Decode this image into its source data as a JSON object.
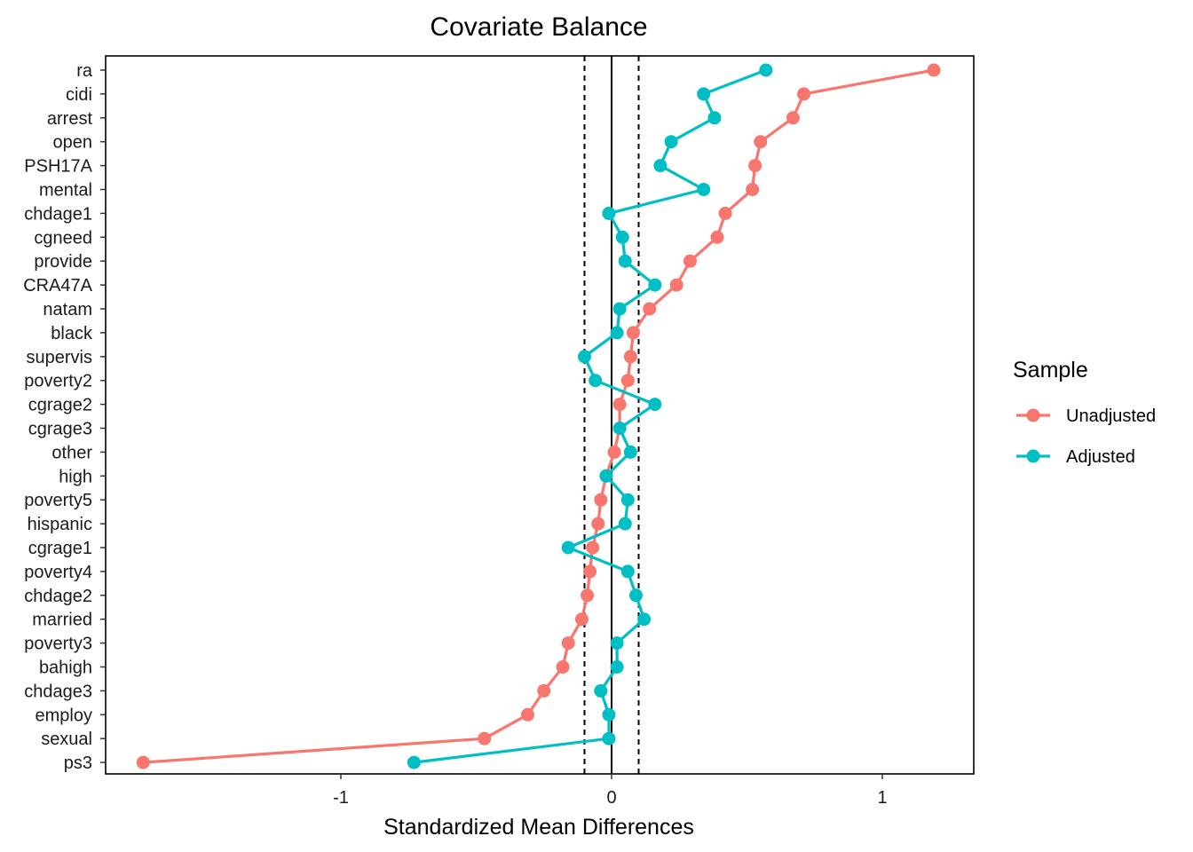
{
  "chart_data": {
    "type": "scatter",
    "title": "Covariate Balance",
    "xlabel": "Standardized Mean Differences",
    "ylabel": "",
    "xlim": [
      -1.86,
      1.34
    ],
    "x_ticks": [
      -1,
      0,
      1
    ],
    "x_tick_labels": [
      "-1",
      "0",
      "1"
    ],
    "reference_line": 0,
    "threshold_lines": [
      -0.1,
      0.1
    ],
    "grid": false,
    "legend_position": "right",
    "legend_title": "Sample",
    "categories": [
      "ra",
      "cidi",
      "arrest",
      "open",
      "PSH17A",
      "mental",
      "chdage1",
      "cgneed",
      "provide",
      "CRA47A",
      "natam",
      "black",
      "supervis",
      "poverty2",
      "cgrage2",
      "cgrage3",
      "other",
      "high",
      "poverty5",
      "hispanic",
      "cgrage1",
      "poverty4",
      "chdage2",
      "married",
      "poverty3",
      "bahigh",
      "chdage3",
      "employ",
      "sexual",
      "ps3"
    ],
    "series": [
      {
        "name": "Unadjusted",
        "color": "#F8766D",
        "values": [
          1.19,
          0.71,
          0.67,
          0.55,
          0.53,
          0.52,
          0.42,
          0.39,
          0.29,
          0.24,
          0.14,
          0.08,
          0.07,
          0.06,
          0.03,
          0.03,
          0.01,
          -0.02,
          -0.04,
          -0.05,
          -0.07,
          -0.08,
          -0.09,
          -0.11,
          -0.16,
          -0.18,
          -0.25,
          -0.31,
          -0.47,
          -1.73
        ]
      },
      {
        "name": "Adjusted",
        "color": "#00BFC4",
        "values": [
          0.57,
          0.34,
          0.38,
          0.22,
          0.18,
          0.34,
          -0.01,
          0.04,
          0.05,
          0.16,
          0.03,
          0.02,
          -0.1,
          -0.06,
          0.16,
          0.03,
          0.07,
          -0.02,
          0.06,
          0.05,
          -0.16,
          0.06,
          0.09,
          0.12,
          0.02,
          0.02,
          -0.04,
          -0.01,
          -0.01,
          -0.73
        ]
      }
    ]
  }
}
